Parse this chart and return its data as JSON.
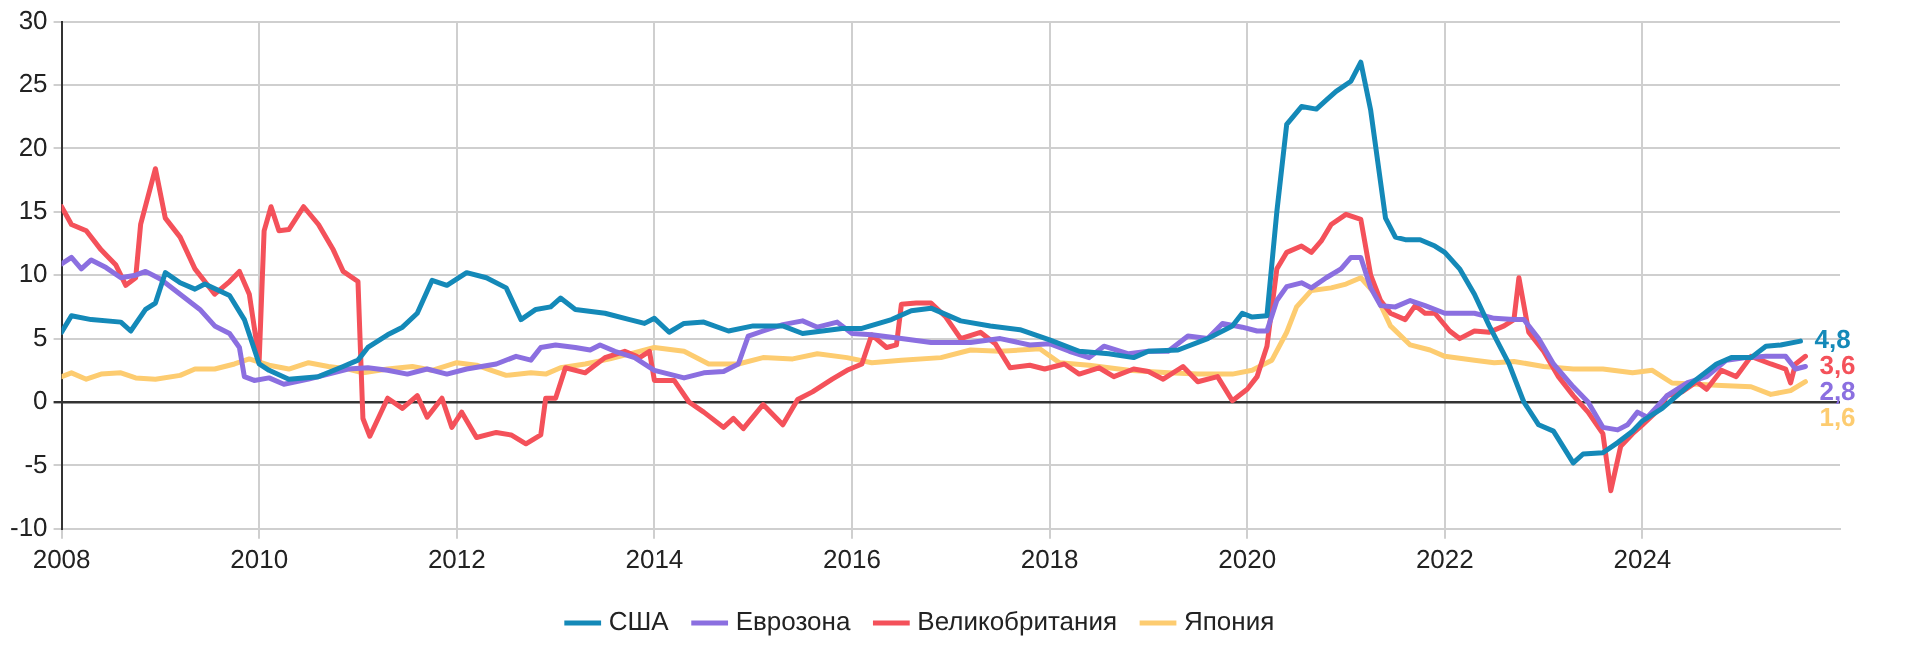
{
  "chart_data": {
    "type": "line",
    "xlim": [
      2008,
      2026
    ],
    "xticks": [
      2008,
      2010,
      2012,
      2014,
      2016,
      2018,
      2020,
      2022,
      2024
    ],
    "ylim": [
      -10,
      30
    ],
    "yticks": [
      -10,
      -5,
      0,
      5,
      10,
      15,
      20,
      25,
      30
    ],
    "grid": true,
    "legend": "bottom",
    "marker": "none",
    "line_style": "solid",
    "series": [
      {
        "name": "США",
        "color": "#1489b8",
        "x": [
          2008.0,
          2008.1,
          2008.3,
          2008.6,
          2008.7,
          2008.85,
          2008.95,
          2009.05,
          2009.2,
          2009.35,
          2009.45,
          2009.7,
          2009.85,
          2010.0,
          2010.1,
          2010.3,
          2010.6,
          2010.85,
          2011.0,
          2011.1,
          2011.3,
          2011.45,
          2011.6,
          2011.75,
          2011.9,
          2012.1,
          2012.3,
          2012.5,
          2012.65,
          2012.8,
          2012.95,
          2013.05,
          2013.2,
          2013.5,
          2013.75,
          2013.9,
          2014.0,
          2014.15,
          2014.3,
          2014.5,
          2014.75,
          2015.0,
          2015.3,
          2015.5,
          2015.9,
          2016.1,
          2016.4,
          2016.6,
          2016.8,
          2017.1,
          2017.4,
          2017.7,
          2018.0,
          2018.3,
          2018.6,
          2018.85,
          2019.0,
          2019.3,
          2019.6,
          2019.85,
          2019.95,
          2020.05,
          2020.2,
          2020.3,
          2020.4,
          2020.55,
          2020.7,
          2020.8,
          2020.9,
          2021.05,
          2021.15,
          2021.25,
          2021.4,
          2021.5,
          2021.6,
          2021.75,
          2021.9,
          2022.0,
          2022.15,
          2022.3,
          2022.45,
          2022.65,
          2022.8,
          2022.95,
          2023.1,
          2023.3,
          2023.4,
          2023.6,
          2023.75,
          2023.9,
          2024.0,
          2024.2,
          2024.35,
          2024.55,
          2024.75,
          2024.9,
          2025.1,
          2025.25,
          2025.4,
          2025.6
        ],
        "values": [
          5.5,
          6.8,
          6.5,
          6.3,
          5.6,
          7.3,
          7.8,
          10.2,
          9.4,
          8.9,
          9.3,
          8.4,
          6.5,
          3.0,
          2.5,
          1.8,
          2.0,
          2.8,
          3.3,
          4.3,
          5.3,
          5.9,
          7.0,
          9.6,
          9.2,
          10.2,
          9.8,
          9.0,
          6.5,
          7.3,
          7.5,
          8.2,
          7.3,
          7.0,
          6.5,
          6.2,
          6.6,
          5.5,
          6.2,
          6.3,
          5.6,
          6.0,
          6.0,
          5.4,
          5.8,
          5.8,
          6.5,
          7.2,
          7.4,
          6.4,
          6.0,
          5.7,
          4.9,
          4.0,
          3.8,
          3.5,
          4.0,
          4.1,
          5.0,
          6.0,
          7.0,
          6.7,
          6.8,
          15.0,
          21.9,
          23.3,
          23.1,
          23.8,
          24.5,
          25.3,
          26.8,
          23.0,
          14.5,
          13.0,
          12.8,
          12.8,
          12.3,
          11.8,
          10.5,
          8.5,
          6.0,
          3.0,
          0.0,
          -1.8,
          -2.3,
          -4.8,
          -4.1,
          -4.0,
          -3.2,
          -2.3,
          -1.5,
          -0.5,
          0.5,
          1.8,
          3.0,
          3.5,
          3.5,
          4.4,
          4.5,
          4.8
        ],
        "value_labels": [
          null,
          null,
          null,
          null,
          null,
          null,
          null,
          null,
          null,
          null,
          null,
          null,
          null,
          null,
          null,
          null,
          null,
          null,
          null,
          null,
          null,
          null,
          null,
          null,
          null,
          null,
          null,
          null,
          null,
          null,
          null,
          null,
          null,
          null,
          null,
          null,
          null,
          null,
          null,
          null,
          null,
          null,
          null,
          null,
          null,
          null,
          null,
          null,
          null,
          null,
          null,
          null,
          null,
          null,
          null,
          null,
          null,
          null,
          null,
          null,
          null,
          null,
          null,
          null,
          null,
          null,
          null,
          null,
          null,
          null,
          null,
          null,
          null,
          null,
          null,
          null,
          null,
          null,
          null,
          null,
          null,
          null,
          null,
          null,
          null,
          null,
          null,
          null,
          null,
          null,
          null,
          null,
          null,
          null,
          null,
          null,
          null,
          null,
          null,
          "4,8"
        ]
      },
      {
        "name": "Еврозона",
        "color": "#8b6fe0",
        "x": [
          2008.0,
          2008.1,
          2008.2,
          2008.3,
          2008.45,
          2008.6,
          2008.75,
          2008.85,
          2009.0,
          2009.2,
          2009.4,
          2009.55,
          2009.7,
          2009.8,
          2009.85,
          2009.95,
          2010.1,
          2010.25,
          2010.5,
          2010.7,
          2010.9,
          2011.1,
          2011.3,
          2011.5,
          2011.7,
          2011.9,
          2012.1,
          2012.4,
          2012.6,
          2012.75,
          2012.85,
          2013.0,
          2013.2,
          2013.35,
          2013.45,
          2013.6,
          2013.8,
          2014.0,
          2014.2,
          2014.3,
          2014.5,
          2014.7,
          2014.85,
          2014.95,
          2015.1,
          2015.3,
          2015.5,
          2015.65,
          2015.85,
          2016.0,
          2016.2,
          2016.5,
          2016.8,
          2017.2,
          2017.5,
          2017.8,
          2018.0,
          2018.2,
          2018.4,
          2018.55,
          2018.8,
          2019.0,
          2019.2,
          2019.4,
          2019.6,
          2019.75,
          2019.95,
          2020.1,
          2020.2,
          2020.3,
          2020.4,
          2020.55,
          2020.65,
          2020.8,
          2020.95,
          2021.05,
          2021.15,
          2021.25,
          2021.35,
          2021.5,
          2021.65,
          2021.8,
          2022.0,
          2022.3,
          2022.5,
          2022.7,
          2022.8,
          2022.95,
          2023.1,
          2023.3,
          2023.45,
          2023.6,
          2023.75,
          2023.85,
          2023.95,
          2024.05,
          2024.25,
          2024.45,
          2024.65,
          2024.85,
          2025.05,
          2025.25,
          2025.45,
          2025.55,
          2025.65
        ],
        "values": [
          10.9,
          11.4,
          10.5,
          11.2,
          10.6,
          9.8,
          10.0,
          10.3,
          9.7,
          8.5,
          7.3,
          6.0,
          5.4,
          4.3,
          2.0,
          1.7,
          1.9,
          1.4,
          1.8,
          2.2,
          2.6,
          2.7,
          2.5,
          2.2,
          2.6,
          2.2,
          2.6,
          3.0,
          3.6,
          3.3,
          4.3,
          4.5,
          4.3,
          4.1,
          4.5,
          4.0,
          3.5,
          2.5,
          2.1,
          1.9,
          2.3,
          2.4,
          3.0,
          5.2,
          5.6,
          6.1,
          6.4,
          5.9,
          6.3,
          5.4,
          5.3,
          5.0,
          4.7,
          4.7,
          5.0,
          4.5,
          4.6,
          4.0,
          3.5,
          4.4,
          3.8,
          4.0,
          4.0,
          5.2,
          5.0,
          6.2,
          5.9,
          5.6,
          5.6,
          8.0,
          9.1,
          9.4,
          9.0,
          9.8,
          10.5,
          11.4,
          11.4,
          9.0,
          7.6,
          7.5,
          8.0,
          7.6,
          7.0,
          7.0,
          6.6,
          6.5,
          6.5,
          5.0,
          3.0,
          1.2,
          0.0,
          -2.0,
          -2.2,
          -1.8,
          -0.8,
          -1.2,
          0.5,
          1.5,
          2.0,
          3.3,
          3.5,
          3.6,
          3.6,
          2.6,
          2.8
        ],
        "value_labels": [
          null,
          null,
          null,
          null,
          null,
          null,
          null,
          null,
          null,
          null,
          null,
          null,
          null,
          null,
          null,
          null,
          null,
          null,
          null,
          null,
          null,
          null,
          null,
          null,
          null,
          null,
          null,
          null,
          null,
          null,
          null,
          null,
          null,
          null,
          null,
          null,
          null,
          null,
          null,
          null,
          null,
          null,
          null,
          null,
          null,
          null,
          null,
          null,
          null,
          null,
          null,
          null,
          null,
          null,
          null,
          null,
          null,
          null,
          null,
          null,
          null,
          null,
          null,
          null,
          null,
          null,
          null,
          null,
          null,
          null,
          null,
          null,
          null,
          null,
          null,
          null,
          null,
          null,
          null,
          null,
          null,
          null,
          null,
          null,
          null,
          null,
          null,
          null,
          null,
          null,
          null,
          null,
          null,
          null,
          null,
          null,
          null,
          null,
          null,
          null,
          null,
          null,
          null,
          null,
          "2,8"
        ]
      },
      {
        "name": "Великобритания",
        "color": "#f4515a",
        "x": [
          2008.0,
          2008.1,
          2008.25,
          2008.4,
          2008.55,
          2008.65,
          2008.75,
          2008.8,
          2008.95,
          2009.05,
          2009.2,
          2009.35,
          2009.45,
          2009.55,
          2009.7,
          2009.8,
          2009.9,
          2010.0,
          2010.05,
          2010.12,
          2010.2,
          2010.3,
          2010.45,
          2010.6,
          2010.75,
          2010.85,
          2011.0,
          2011.05,
          2011.12,
          2011.3,
          2011.45,
          2011.6,
          2011.7,
          2011.85,
          2011.95,
          2012.05,
          2012.2,
          2012.4,
          2012.55,
          2012.7,
          2012.85,
          2012.9,
          2013.0,
          2013.1,
          2013.3,
          2013.5,
          2013.7,
          2013.85,
          2013.95,
          2014.0,
          2014.2,
          2014.35,
          2014.5,
          2014.7,
          2014.8,
          2014.9,
          2015.1,
          2015.3,
          2015.45,
          2015.6,
          2015.8,
          2015.95,
          2016.1,
          2016.2,
          2016.35,
          2016.45,
          2016.5,
          2016.65,
          2016.8,
          2016.95,
          2017.1,
          2017.3,
          2017.45,
          2017.6,
          2017.8,
          2017.95,
          2018.15,
          2018.3,
          2018.5,
          2018.65,
          2018.85,
          2019.0,
          2019.15,
          2019.35,
          2019.5,
          2019.7,
          2019.85,
          2020.0,
          2020.1,
          2020.2,
          2020.3,
          2020.4,
          2020.55,
          2020.65,
          2020.75,
          2020.85,
          2021.0,
          2021.15,
          2021.25,
          2021.35,
          2021.45,
          2021.6,
          2021.7,
          2021.8,
          2021.9,
          2022.05,
          2022.15,
          2022.3,
          2022.45,
          2022.6,
          2022.7,
          2022.75,
          2022.85,
          2023.0,
          2023.15,
          2023.3,
          2023.45,
          2023.6,
          2023.68,
          2023.78,
          2023.9,
          2024.0,
          2024.15,
          2024.25,
          2024.4,
          2024.55,
          2024.65,
          2024.8,
          2024.95,
          2025.1,
          2025.3,
          2025.45,
          2025.5,
          2025.55,
          2025.65
        ],
        "values": [
          15.4,
          14.0,
          13.5,
          12.0,
          10.8,
          9.2,
          9.8,
          14.0,
          18.4,
          14.5,
          13.0,
          10.5,
          9.5,
          8.5,
          9.5,
          10.3,
          8.5,
          3.3,
          13.5,
          15.4,
          13.5,
          13.6,
          15.4,
          14.0,
          12.0,
          10.3,
          9.5,
          -1.3,
          -2.7,
          0.3,
          -0.5,
          0.5,
          -1.2,
          0.3,
          -2.0,
          -0.8,
          -2.8,
          -2.4,
          -2.6,
          -3.3,
          -2.6,
          0.3,
          0.3,
          2.7,
          2.3,
          3.5,
          4.0,
          3.5,
          4.0,
          1.7,
          1.7,
          0.0,
          -0.8,
          -2.0,
          -1.3,
          -2.1,
          -0.2,
          -1.8,
          0.2,
          0.8,
          1.8,
          2.5,
          3.0,
          5.3,
          4.3,
          4.5,
          7.7,
          7.8,
          7.8,
          6.7,
          5.0,
          5.5,
          4.6,
          2.7,
          2.9,
          2.6,
          3.0,
          2.2,
          2.7,
          2.0,
          2.6,
          2.4,
          1.8,
          2.8,
          1.6,
          2.0,
          0.1,
          1.0,
          2.0,
          4.4,
          10.5,
          11.8,
          12.3,
          11.8,
          12.7,
          14.0,
          14.8,
          14.4,
          10.0,
          8.0,
          7.0,
          6.5,
          7.6,
          7.0,
          7.0,
          5.6,
          5.0,
          5.6,
          5.5,
          6.0,
          6.5,
          9.8,
          5.5,
          4.0,
          2.0,
          0.5,
          -0.8,
          -2.5,
          -7.0,
          -3.5,
          -2.5,
          -1.8,
          -0.7,
          0.5,
          0.8,
          1.6,
          1.0,
          2.5,
          2.0,
          3.6,
          3.0,
          2.6,
          1.5,
          3.0,
          3.6
        ],
        "value_labels": [
          null,
          null,
          null,
          null,
          null,
          null,
          null,
          null,
          null,
          null,
          null,
          null,
          null,
          null,
          null,
          null,
          null,
          null,
          null,
          null,
          null,
          null,
          null,
          null,
          null,
          null,
          null,
          null,
          null,
          null,
          null,
          null,
          null,
          null,
          null,
          null,
          null,
          null,
          null,
          null,
          null,
          null,
          null,
          null,
          null,
          null,
          null,
          null,
          null,
          null,
          null,
          null,
          null,
          null,
          null,
          null,
          null,
          null,
          null,
          null,
          null,
          null,
          null,
          null,
          null,
          null,
          null,
          null,
          null,
          null,
          null,
          null,
          null,
          null,
          null,
          null,
          null,
          null,
          null,
          null,
          null,
          null,
          null,
          null,
          null,
          null,
          null,
          null,
          null,
          null,
          null,
          null,
          null,
          null,
          null,
          null,
          null,
          null,
          null,
          null,
          null,
          null,
          null,
          null,
          null,
          null,
          null,
          null,
          null,
          null,
          null,
          null,
          null,
          null,
          null,
          null,
          null,
          null,
          null,
          null,
          null,
          null,
          null,
          null,
          null,
          null,
          null,
          null,
          null,
          null,
          null,
          null,
          null,
          null,
          "3,6"
        ]
      },
      {
        "name": "Япония",
        "color": "#fdcc70",
        "x": [
          2008.0,
          2008.1,
          2008.25,
          2008.4,
          2008.6,
          2008.75,
          2008.95,
          2009.2,
          2009.35,
          2009.55,
          2009.75,
          2009.9,
          2010.1,
          2010.3,
          2010.5,
          2010.7,
          2010.9,
          2011.05,
          2011.3,
          2011.55,
          2011.75,
          2012.0,
          2012.2,
          2012.35,
          2012.5,
          2012.75,
          2012.9,
          2013.05,
          2013.3,
          2013.55,
          2013.8,
          2014.0,
          2014.3,
          2014.55,
          2014.85,
          2015.1,
          2015.4,
          2015.65,
          2015.95,
          2016.2,
          2016.5,
          2016.9,
          2017.2,
          2017.5,
          2017.9,
          2018.1,
          2018.4,
          2018.8,
          2019.2,
          2019.5,
          2019.85,
          2020.05,
          2020.25,
          2020.4,
          2020.5,
          2020.65,
          2020.85,
          2021.0,
          2021.15,
          2021.3,
          2021.45,
          2021.65,
          2021.85,
          2022.0,
          2022.3,
          2022.5,
          2022.7,
          2023.0,
          2023.3,
          2023.6,
          2023.9,
          2024.1,
          2024.3,
          2024.55,
          2024.8,
          2025.1,
          2025.3,
          2025.5,
          2025.65
        ],
        "values": [
          2.0,
          2.3,
          1.8,
          2.2,
          2.3,
          1.9,
          1.8,
          2.1,
          2.6,
          2.6,
          3.0,
          3.4,
          2.9,
          2.6,
          3.1,
          2.8,
          2.6,
          2.3,
          2.6,
          2.8,
          2.5,
          3.1,
          2.9,
          2.5,
          2.1,
          2.3,
          2.2,
          2.7,
          3.0,
          3.4,
          3.9,
          4.3,
          4.0,
          3.0,
          3.0,
          3.5,
          3.4,
          3.8,
          3.5,
          3.1,
          3.3,
          3.5,
          4.1,
          4.0,
          4.2,
          3.1,
          2.9,
          2.5,
          2.3,
          2.2,
          2.2,
          2.5,
          3.3,
          5.5,
          7.5,
          8.8,
          9.0,
          9.3,
          9.8,
          8.5,
          6.0,
          4.5,
          4.1,
          3.6,
          3.3,
          3.1,
          3.2,
          2.8,
          2.6,
          2.6,
          2.3,
          2.5,
          1.5,
          1.4,
          1.3,
          1.2,
          0.6,
          0.9,
          1.6
        ],
        "value_labels": [
          null,
          null,
          null,
          null,
          null,
          null,
          null,
          null,
          null,
          null,
          null,
          null,
          null,
          null,
          null,
          null,
          null,
          null,
          null,
          null,
          null,
          null,
          null,
          null,
          null,
          null,
          null,
          null,
          null,
          null,
          null,
          null,
          null,
          null,
          null,
          null,
          null,
          null,
          null,
          null,
          null,
          null,
          null,
          null,
          null,
          null,
          null,
          null,
          null,
          null,
          null,
          null,
          null,
          null,
          null,
          null,
          null,
          null,
          null,
          null,
          null,
          null,
          null,
          null,
          null,
          null,
          null,
          null,
          null,
          null,
          null,
          null,
          null,
          null,
          null,
          null,
          null,
          null,
          "1,6"
        ]
      }
    ]
  }
}
